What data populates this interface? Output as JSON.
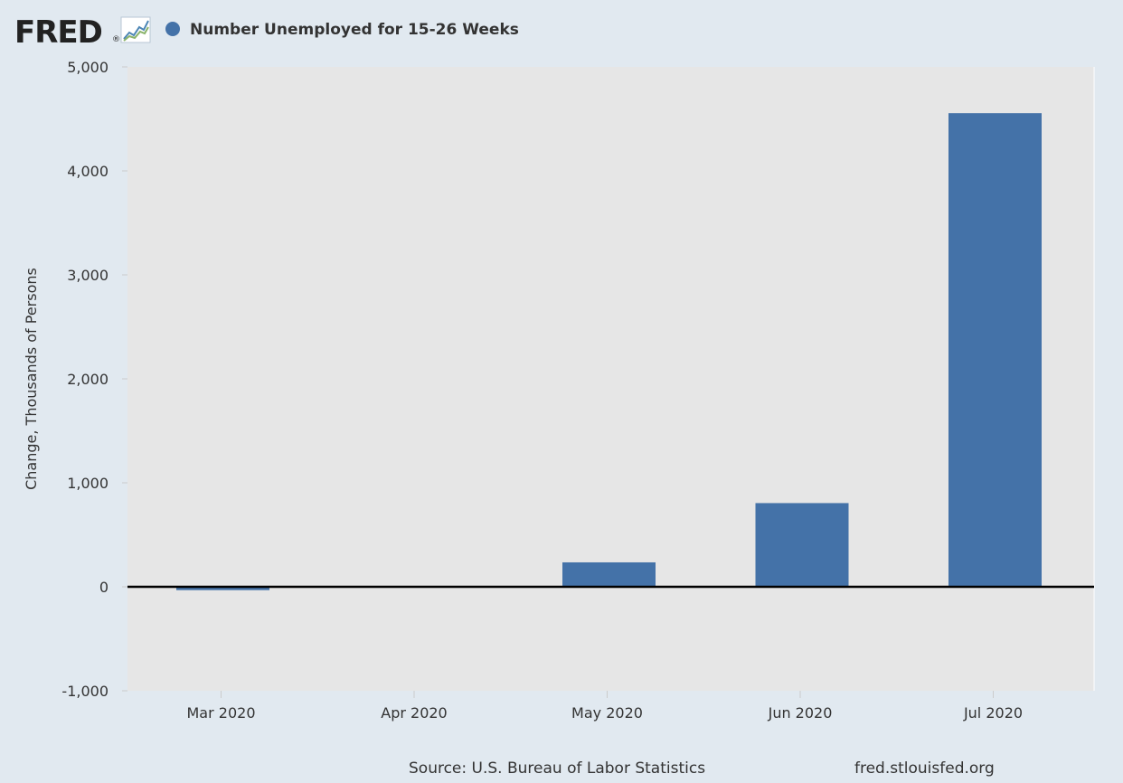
{
  "header": {
    "logo_text": "FRED",
    "logo_mark": "®"
  },
  "colors": {
    "page_background": "#e1e9f0",
    "plot_background": "#e6e6e6",
    "series": "#4472a8",
    "zero_line": "#000000",
    "logo_text": "#222222",
    "text": "#333333"
  },
  "footer": {
    "source": "Source: U.S. Bureau of Labor Statistics",
    "site": "fred.stlouisfed.org"
  },
  "chart_data": {
    "type": "bar",
    "title": "",
    "categories": [
      "Mar 2020",
      "Apr 2020",
      "May 2020",
      "Jun 2020",
      "Jul 2020"
    ],
    "series": [
      {
        "name": "Number Unemployed for 15-26 Weeks",
        "values": [
          -32,
          0,
          235,
          805,
          4555
        ]
      }
    ],
    "xlabel": "",
    "ylabel": "Change, Thousands of Persons",
    "ylim": [
      -1000,
      5000
    ],
    "yticks": [
      -1000,
      0,
      1000,
      2000,
      3000,
      4000,
      5000
    ],
    "ytick_labels": [
      "-1,000",
      "0",
      "1,000",
      "2,000",
      "3,000",
      "4,000",
      "5,000"
    ],
    "grid": false,
    "legend_position": "top-left"
  }
}
